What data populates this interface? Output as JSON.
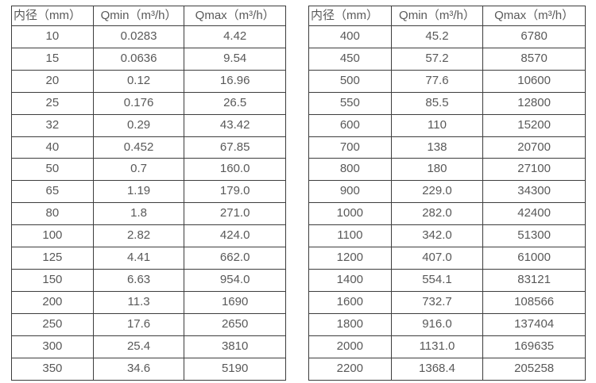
{
  "colors": {
    "background": "#ffffff",
    "border": "#3d3d3d",
    "text": "#595959"
  },
  "tables": [
    {
      "name": "flow-table-small-diameters",
      "headers": [
        "内径（mm）",
        "Qmin（m³/h）",
        "Qmax（m³/h）"
      ],
      "rows": [
        [
          "10",
          "0.0283",
          "4.42"
        ],
        [
          "15",
          "0.0636",
          "9.54"
        ],
        [
          "20",
          "0.12",
          "16.96"
        ],
        [
          "25",
          "0.176",
          "26.5"
        ],
        [
          "32",
          "0.29",
          "43.42"
        ],
        [
          "40",
          "0.452",
          "67.85"
        ],
        [
          "50",
          "0.7",
          "160.0"
        ],
        [
          "65",
          "1.19",
          "179.0"
        ],
        [
          "80",
          "1.8",
          "271.0"
        ],
        [
          "100",
          "2.82",
          "424.0"
        ],
        [
          "125",
          "4.41",
          "662.0"
        ],
        [
          "150",
          "6.63",
          "954.0"
        ],
        [
          "200",
          "11.3",
          "1690"
        ],
        [
          "250",
          "17.6",
          "2650"
        ],
        [
          "300",
          "25.4",
          "3810"
        ],
        [
          "350",
          "34.6",
          "5190"
        ]
      ]
    },
    {
      "name": "flow-table-large-diameters",
      "headers": [
        "内径（mm）",
        "Qmin（m³/h）",
        "Qmax（m³/h）"
      ],
      "rows": [
        [
          "400",
          "45.2",
          "6780"
        ],
        [
          "450",
          "57.2",
          "8570"
        ],
        [
          "500",
          "77.6",
          "10600"
        ],
        [
          "550",
          "85.5",
          "12800"
        ],
        [
          "600",
          "110",
          "15200"
        ],
        [
          "700",
          "138",
          "20700"
        ],
        [
          "800",
          "180",
          "27100"
        ],
        [
          "900",
          "229.0",
          "34300"
        ],
        [
          "1000",
          "282.0",
          "42400"
        ],
        [
          "1100",
          "342.0",
          "51300"
        ],
        [
          "1200",
          "407.0",
          "61000"
        ],
        [
          "1400",
          "554.1",
          "83121"
        ],
        [
          "1600",
          "732.7",
          "108566"
        ],
        [
          "1800",
          "916.0",
          "137404"
        ],
        [
          "2000",
          "1131.0",
          "169635"
        ],
        [
          "2200",
          "1368.4",
          "205258"
        ]
      ]
    }
  ]
}
